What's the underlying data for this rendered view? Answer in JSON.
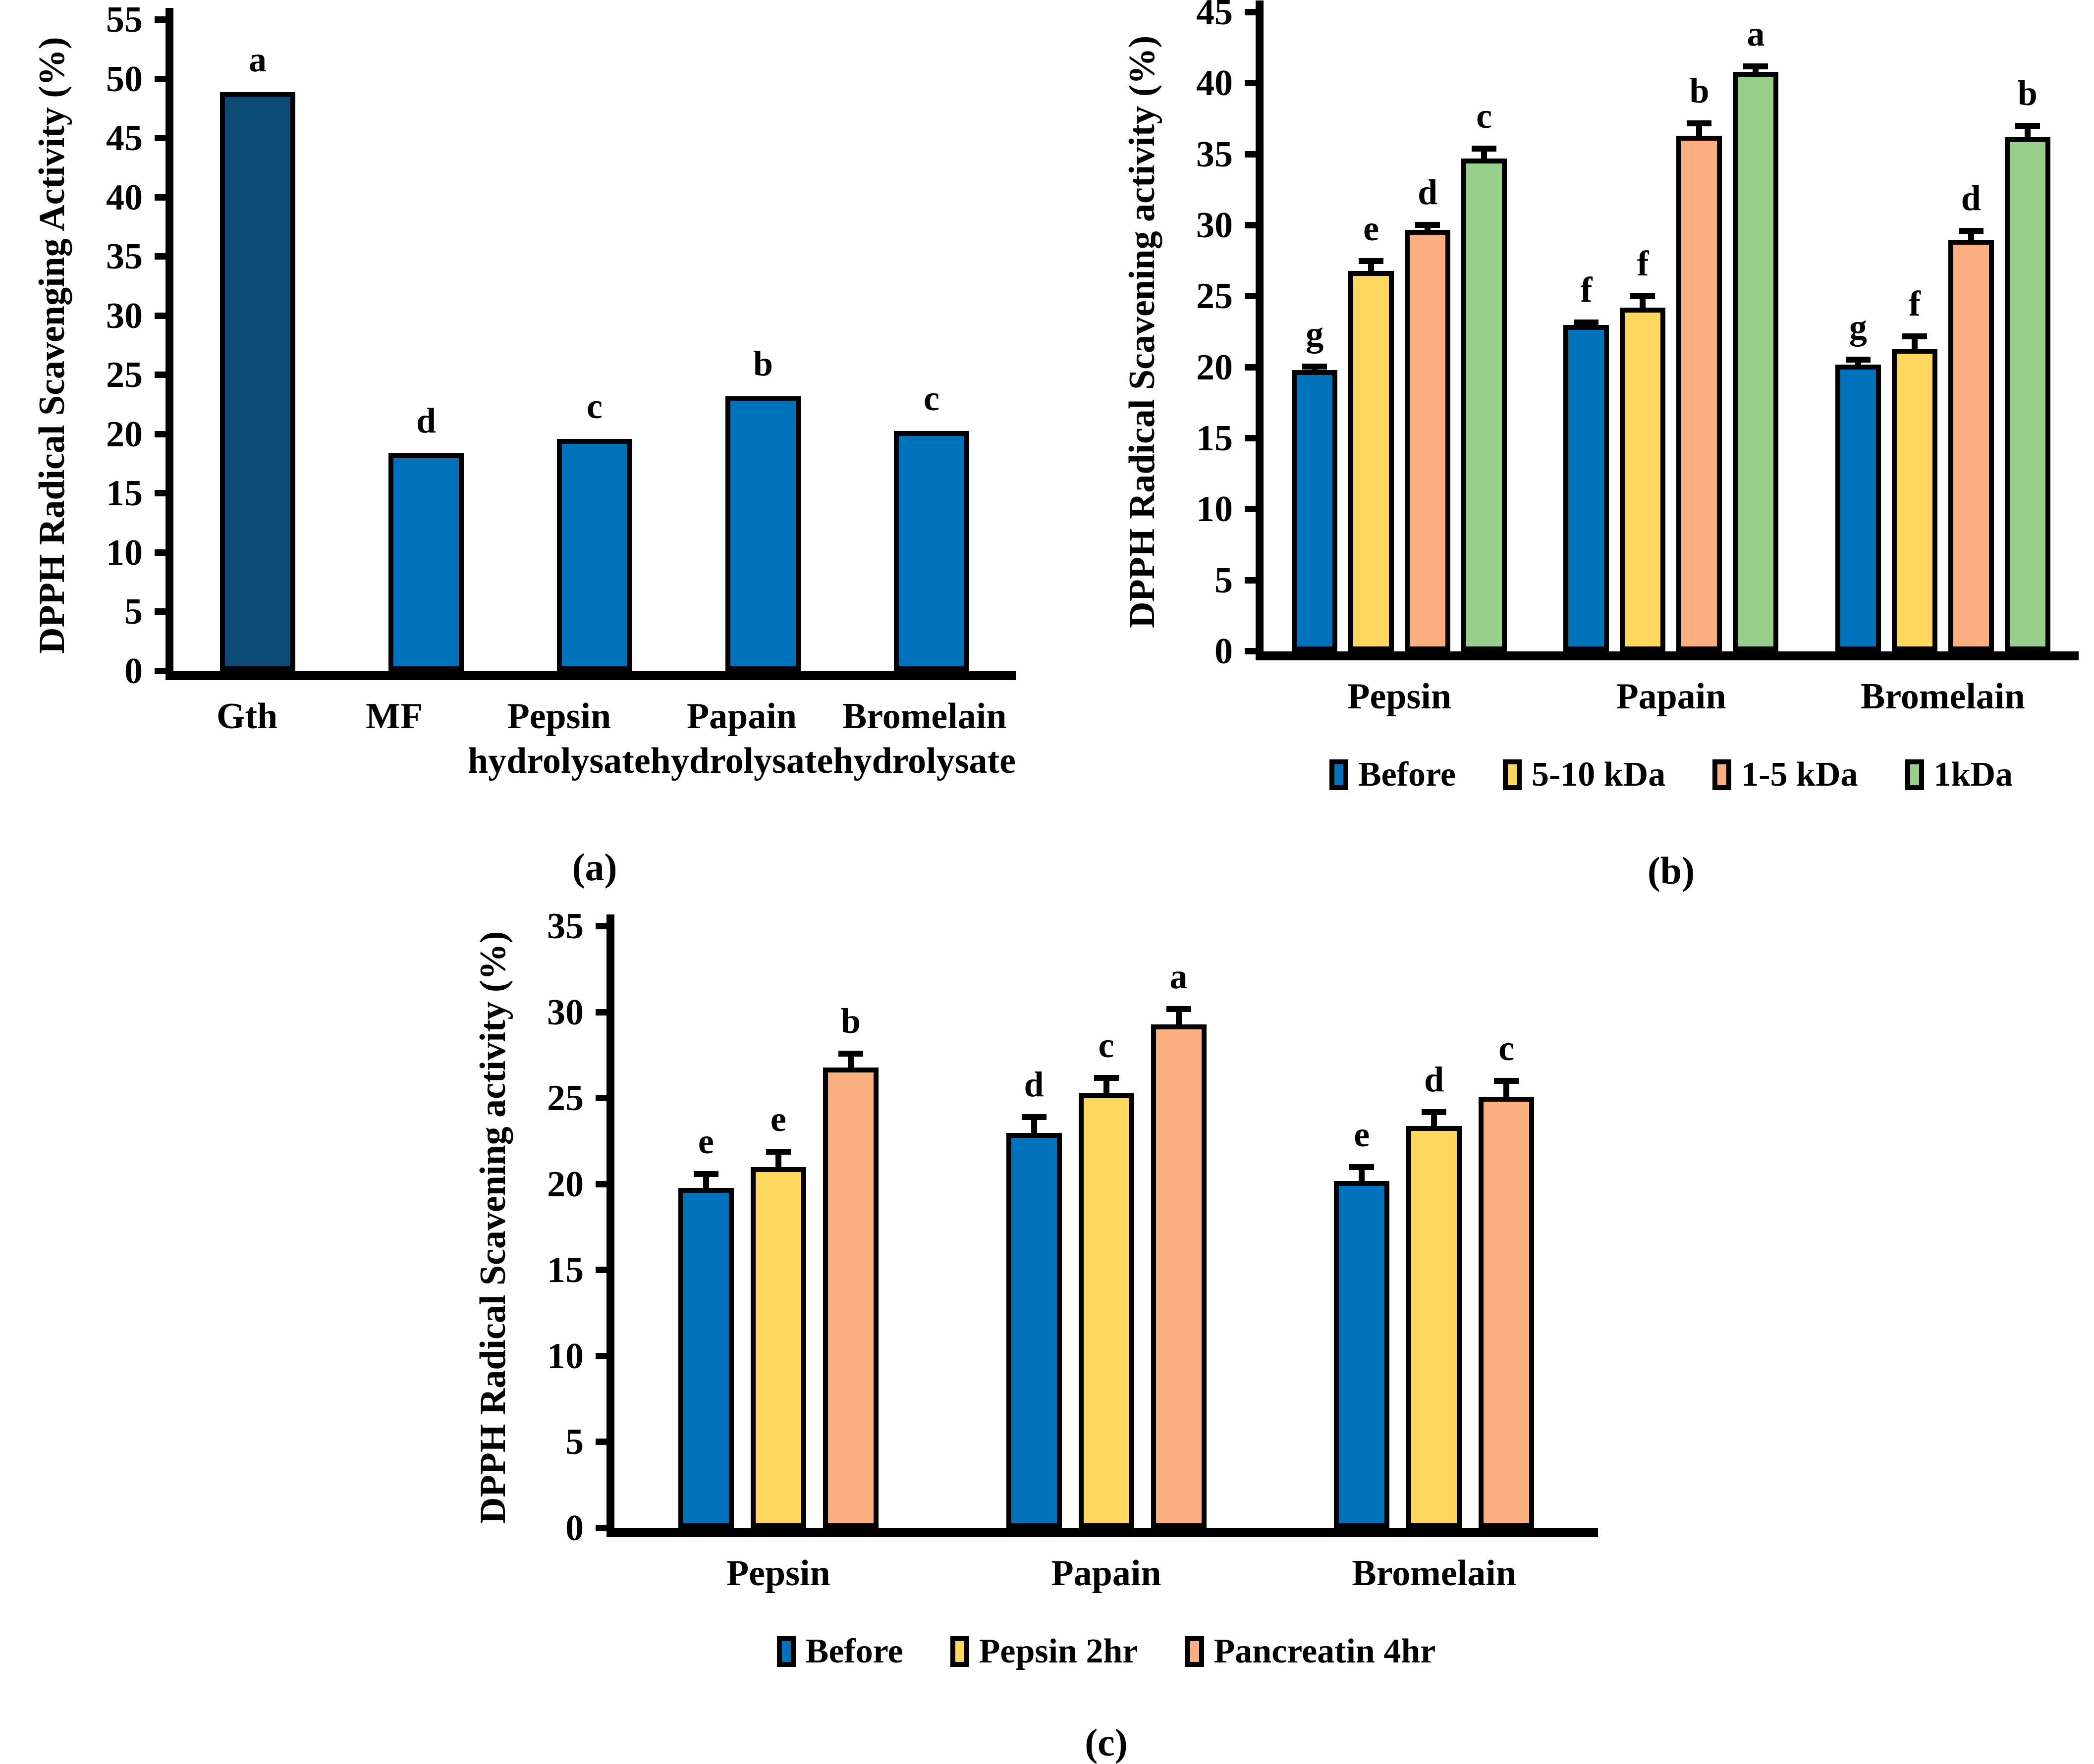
{
  "figure": {
    "background": "#ffffff",
    "panel_captions": [
      "(a)",
      "(b)",
      "(c)"
    ]
  },
  "colors": {
    "dark_blue": "#0B4A75",
    "blue": "#0072BC",
    "yellow": "#FFD75F",
    "orange": "#FBAF81",
    "green": "#97CF8A",
    "axis_black": "#000000"
  },
  "chart_data": [
    {
      "id": "a",
      "type": "bar",
      "title": "",
      "ylabel": "DPPH Radical Scavenging Activity (%)",
      "xlabel": "",
      "ylim": [
        0,
        55
      ],
      "ytick_step": 5,
      "grid": false,
      "legend_position": "none",
      "caption": "(a)",
      "categories": [
        "Gth",
        "MF",
        "Pepsin\nhydrolysate",
        "Papain\nhydrolysate",
        "Bromelain\nhydrolysate"
      ],
      "series": [
        {
          "name": null,
          "color": "#0072BC",
          "colors": [
            "#0B4A75",
            "#0072BC",
            "#0072BC",
            "#0072BC",
            "#0072BC"
          ],
          "values": [
            48.9,
            18.4,
            19.6,
            23.2,
            20.3
          ],
          "letters": [
            "a",
            "d",
            "c",
            "b",
            "c"
          ]
        }
      ],
      "show_legend": false
    },
    {
      "id": "b",
      "type": "grouped_bar",
      "title": "",
      "ylabel": "DPPH Radical Scavening activity (%)",
      "xlabel": "",
      "ylim": [
        0,
        45
      ],
      "ytick_step": 5,
      "grid": false,
      "legend_position": "bottom",
      "caption": "(b)",
      "categories": [
        "Pepsin",
        "Papain",
        "Bromelain"
      ],
      "series": [
        {
          "name": "Before",
          "color": "#0072BC",
          "values": [
            19.8,
            23.0,
            20.2
          ],
          "errors": [
            0.25,
            0.15,
            0.35
          ],
          "letters": [
            "g",
            "f",
            "g"
          ]
        },
        {
          "name": "5-10 kDa",
          "color": "#FFD75F",
          "values": [
            26.8,
            24.2,
            21.3
          ],
          "errors": [
            0.7,
            0.8,
            0.9
          ],
          "letters": [
            "e",
            "f",
            "f"
          ]
        },
        {
          "name": "1-5 kDa",
          "color": "#FBAF81",
          "values": [
            29.7,
            36.3,
            29.0
          ],
          "errors": [
            0.35,
            0.9,
            0.6
          ],
          "letters": [
            "d",
            "b",
            "d"
          ]
        },
        {
          "name": "1kDa",
          "color": "#97CF8A",
          "values": [
            34.7,
            40.8,
            36.2
          ],
          "errors": [
            0.7,
            0.4,
            0.8
          ],
          "letters": [
            "c",
            "a",
            "b"
          ]
        }
      ],
      "show_legend": true
    },
    {
      "id": "c",
      "type": "grouped_bar",
      "title": "",
      "ylabel": "DPPH Radical Scavening activity (%)",
      "xlabel": "",
      "ylim": [
        0,
        35
      ],
      "ytick_step": 5,
      "grid": false,
      "legend_position": "bottom",
      "caption": "(c)",
      "categories": [
        "Pepsin",
        "Papain",
        "Bromelain"
      ],
      "series": [
        {
          "name": "Before",
          "color": "#0072BC",
          "values": [
            19.8,
            23.0,
            20.2
          ],
          "errors": [
            0.8,
            0.9,
            0.8
          ],
          "letters": [
            "e",
            "d",
            "e"
          ]
        },
        {
          "name": "Pepsin 2hr",
          "color": "#FFD75F",
          "values": [
            21.0,
            25.3,
            23.4
          ],
          "errors": [
            0.9,
            0.9,
            0.8
          ],
          "letters": [
            "e",
            "c",
            "d"
          ]
        },
        {
          "name": "Pancreatin 4hr",
          "color": "#FBAF81",
          "values": [
            26.8,
            29.3,
            25.1
          ],
          "errors": [
            0.8,
            0.9,
            0.9
          ],
          "letters": [
            "b",
            "a",
            "c"
          ]
        }
      ],
      "show_legend": true
    }
  ]
}
